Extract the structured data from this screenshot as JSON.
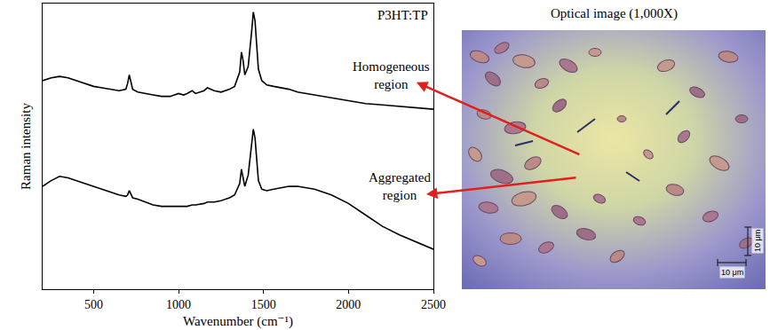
{
  "chart_data": {
    "type": "line",
    "annotations": [
      "P3HT:TP"
    ],
    "x_label": "Wavenumber (cm⁻¹)",
    "y_label": "Raman intensity",
    "x": [
      200,
      250,
      300,
      350,
      400,
      450,
      500,
      550,
      600,
      650,
      690,
      700,
      710,
      720,
      730,
      760,
      800,
      850,
      900,
      950,
      1000,
      1030,
      1050,
      1080,
      1100,
      1150,
      1170,
      1190,
      1210,
      1250,
      1300,
      1330,
      1360,
      1370,
      1380,
      1390,
      1410,
      1430,
      1440,
      1450,
      1460,
      1470,
      1490,
      1520,
      1560,
      1600,
      1650,
      1700,
      1800,
      1900,
      2000,
      2100,
      2200,
      2300,
      2400,
      2500
    ],
    "series": [
      {
        "name": "Homogeneous region",
        "color": "#000000",
        "values": [
          73,
          74,
          74.5,
          74,
          73,
          72,
          71,
          70.5,
          70,
          69.5,
          70,
          72,
          75,
          72,
          70,
          69,
          68.5,
          68,
          67.5,
          67.5,
          68.5,
          68,
          68.5,
          69.5,
          68.5,
          69.5,
          70.5,
          70,
          69.5,
          69,
          70,
          71,
          76,
          83,
          80,
          75,
          78,
          90,
          97,
          94,
          84,
          77,
          73,
          71.5,
          71,
          70.5,
          70,
          69,
          68,
          67,
          66,
          65,
          64.5,
          64,
          63.5,
          63
        ]
      },
      {
        "name": "Aggregated region",
        "color": "#000000",
        "values": [
          36,
          38,
          39.5,
          39,
          38,
          37,
          36,
          35,
          34,
          33,
          32.5,
          33,
          34.5,
          33,
          32,
          31.5,
          30.5,
          29.5,
          29,
          29,
          29,
          29,
          29,
          29.5,
          29.5,
          30,
          30.5,
          30.5,
          30.5,
          31,
          32,
          33,
          37,
          42,
          39,
          36,
          40,
          50,
          56,
          53,
          44,
          38,
          35,
          34.5,
          35,
          35.5,
          36,
          36,
          35,
          33,
          30,
          26,
          22,
          19,
          16.5,
          14
        ]
      }
    ],
    "xlim": [
      200,
      2500
    ],
    "xticks": [
      500,
      1000,
      1500,
      2000,
      2500
    ],
    "ylim": [
      0,
      100
    ],
    "yticks": [],
    "tick_labels": "x",
    "grid": false
  },
  "image": {
    "title": "Optical image (1,000X)",
    "scale_bars": [
      "10 μm",
      "10 μm"
    ]
  }
}
